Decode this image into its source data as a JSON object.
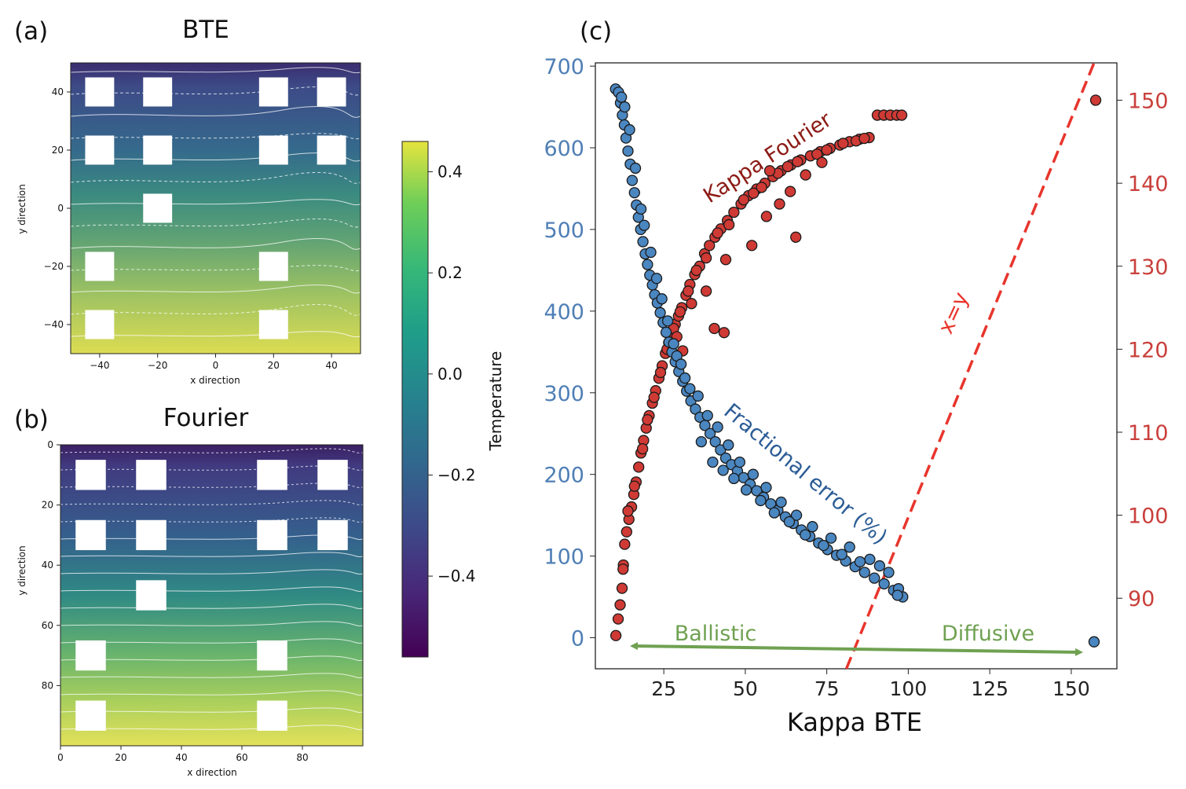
{
  "panels": {
    "a": {
      "label": "(a)",
      "title": "BTE"
    },
    "b": {
      "label": "(b)",
      "title": "Fourier"
    },
    "c": {
      "label": "(c)"
    }
  },
  "colors": {
    "blue_points": "#4a86c0",
    "red_points": "#cf3a35",
    "xy_line": "#e8352c",
    "arrow": "#6fa151",
    "kappa_label": "#8b1a14",
    "frac_label": "#2c5d96",
    "left_ticks": "#4f7fb5",
    "right_ticks": "#c9403c",
    "viridis_low": "#45125f",
    "viridis_high": "#e5e43e"
  },
  "chart_data": [
    {
      "id": "a",
      "type": "heatmap",
      "title": "BTE",
      "xlabel": "x direction",
      "ylabel": "y direction",
      "xlim": [
        -50,
        50
      ],
      "ylim": [
        -50,
        50
      ],
      "xticks": [
        -40,
        -20,
        0,
        20,
        40
      ],
      "yticks": [
        40,
        20,
        0,
        -20,
        -40
      ],
      "pores_centers": [
        [
          -40,
          40
        ],
        [
          -20,
          40
        ],
        [
          20,
          40
        ],
        [
          40,
          40
        ],
        [
          -40,
          20
        ],
        [
          -20,
          20
        ],
        [
          20,
          20
        ],
        [
          40,
          20
        ],
        [
          -20,
          0
        ],
        [
          -40,
          -20
        ],
        [
          20,
          -20
        ],
        [
          -40,
          -40
        ],
        [
          20,
          -40
        ]
      ],
      "pore_size": 10
    },
    {
      "id": "b",
      "type": "heatmap",
      "title": "Fourier",
      "xlabel": "x direction",
      "ylabel": "y direction",
      "xlim": [
        0,
        100
      ],
      "ylim": [
        100,
        0
      ],
      "xticks": [
        0,
        20,
        40,
        60,
        80
      ],
      "yticks": [
        0,
        20,
        40,
        60,
        80
      ],
      "pores_centers": [
        [
          10,
          10
        ],
        [
          30,
          10
        ],
        [
          70,
          10
        ],
        [
          90,
          10
        ],
        [
          10,
          30
        ],
        [
          30,
          30
        ],
        [
          70,
          30
        ],
        [
          90,
          30
        ],
        [
          30,
          50
        ],
        [
          10,
          70
        ],
        [
          70,
          70
        ],
        [
          10,
          90
        ],
        [
          70,
          90
        ]
      ],
      "pore_size": 10
    },
    {
      "id": "colorbar",
      "type": "colorbar",
      "label": "Temperature",
      "range": [
        -0.56,
        0.46
      ],
      "ticks": [
        0.4,
        0.2,
        0.0,
        -0.2,
        -0.4
      ],
      "tick_labels": [
        "0.4",
        "0.2",
        "0.0",
        "−0.2",
        "−0.4"
      ]
    },
    {
      "id": "c",
      "type": "scatter",
      "xlabel": "Kappa BTE",
      "xlim": [
        4,
        164
      ],
      "xticks": [
        25,
        50,
        75,
        100,
        125,
        150
      ],
      "ylim_left": [
        -38,
        704
      ],
      "yticks_left": [
        0,
        100,
        200,
        300,
        400,
        500,
        600,
        700
      ],
      "ylim_right": [
        81.5,
        154.5
      ],
      "yticks_right": [
        90,
        100,
        110,
        120,
        130,
        140,
        150
      ],
      "series": [
        {
          "name": "Fractional error (%)",
          "axis": "left",
          "points": [
            [
              10.2,
              672
            ],
            [
              11.1,
              668
            ],
            [
              11.7,
              655
            ],
            [
              12.3,
              640
            ],
            [
              12.9,
              628
            ],
            [
              13.4,
              612
            ],
            [
              14.0,
              596
            ],
            [
              14.7,
              580
            ],
            [
              15.3,
              560
            ],
            [
              16.0,
              545
            ],
            [
              16.6,
              530
            ],
            [
              17.2,
              515
            ],
            [
              17.9,
              500
            ],
            [
              18.6,
              485
            ],
            [
              19.3,
              470
            ],
            [
              20.0,
              457
            ],
            [
              20.7,
              444
            ],
            [
              21.5,
              432
            ],
            [
              22.2,
              420
            ],
            [
              23.0,
              410
            ],
            [
              23.9,
              398
            ],
            [
              24.8,
              386
            ],
            [
              25.7,
              374
            ],
            [
              26.6,
              362
            ],
            [
              27.5,
              350
            ],
            [
              28.5,
              338
            ],
            [
              29.6,
              326
            ],
            [
              30.8,
              314
            ],
            [
              32.0,
              302
            ],
            [
              33.3,
              290
            ],
            [
              34.7,
              280
            ],
            [
              36.1,
              270
            ],
            [
              37.6,
              260
            ],
            [
              39.2,
              250
            ],
            [
              40.8,
              240
            ],
            [
              42.4,
              230
            ],
            [
              44.0,
              220
            ],
            [
              45.8,
              212
            ],
            [
              47.6,
              204
            ],
            [
              49.5,
              196
            ],
            [
              51.5,
              188
            ],
            [
              53.5,
              180
            ],
            [
              55.6,
              172
            ],
            [
              57.8,
              164
            ],
            [
              60.0,
              156
            ],
            [
              62.3,
              148
            ],
            [
              64.7,
              140
            ],
            [
              67.2,
              132
            ],
            [
              69.8,
              124
            ],
            [
              72.5,
              116
            ],
            [
              75.2,
              108
            ],
            [
              78.0,
              101
            ],
            [
              80.8,
              94
            ],
            [
              83.7,
              87
            ],
            [
              86.6,
              80
            ],
            [
              89.6,
              73
            ],
            [
              92.6,
              66
            ],
            [
              95.5,
              58
            ],
            [
              98.3,
              50
            ],
            [
              12.0,
              662
            ],
            [
              13.0,
              650
            ],
            [
              14.5,
              622
            ],
            [
              16.3,
              575
            ],
            [
              18.0,
              525
            ],
            [
              19.0,
              505
            ],
            [
              21.0,
              472
            ],
            [
              22.8,
              440
            ],
            [
              24.4,
              415
            ],
            [
              26.2,
              388
            ],
            [
              28.0,
              360
            ],
            [
              29.0,
              345
            ],
            [
              30.3,
              335
            ],
            [
              31.5,
              318
            ],
            [
              33.0,
              305
            ],
            [
              35.5,
              296
            ],
            [
              38.4,
              272
            ],
            [
              41.5,
              258
            ],
            [
              44.8,
              236
            ],
            [
              48.3,
              215
            ],
            [
              52.4,
              200
            ],
            [
              56.4,
              184
            ],
            [
              61.0,
              166
            ],
            [
              65.7,
              150
            ],
            [
              70.6,
              136
            ],
            [
              76.3,
              122
            ],
            [
              82.0,
              111
            ],
            [
              88.2,
              96
            ],
            [
              94.0,
              80
            ],
            [
              97.0,
              60
            ],
            [
              36.5,
              240
            ],
            [
              40.0,
              215
            ],
            [
              43.2,
              205
            ],
            [
              46.5,
              195
            ],
            [
              50.3,
              181
            ],
            [
              54.7,
              168
            ],
            [
              58.9,
              153
            ],
            [
              63.5,
              142
            ],
            [
              68.4,
              126
            ],
            [
              74.0,
              113
            ],
            [
              79.6,
              102
            ],
            [
              85.2,
              93
            ],
            [
              91.2,
              88
            ],
            [
              96.7,
              52
            ],
            [
              157.0,
              -5
            ]
          ]
        },
        {
          "name": "Kappa Fourier",
          "axis": "right",
          "points": [
            [
              10.3,
              85.5
            ],
            [
              11.0,
              87.5
            ],
            [
              11.6,
              89.2
            ],
            [
              12.2,
              91.2
            ],
            [
              12.6,
              94.0
            ],
            [
              13.0,
              96.5
            ],
            [
              13.6,
              98.0
            ],
            [
              14.3,
              99.5
            ],
            [
              15.1,
              101.0
            ],
            [
              15.8,
              102.5
            ],
            [
              16.5,
              104.0
            ],
            [
              17.3,
              105.8
            ],
            [
              18.0,
              107.5
            ],
            [
              18.8,
              109.0
            ],
            [
              19.6,
              110.5
            ],
            [
              20.5,
              112.0
            ],
            [
              21.5,
              113.5
            ],
            [
              22.5,
              115.0
            ],
            [
              23.5,
              116.5
            ],
            [
              24.5,
              118.0
            ],
            [
              25.5,
              119.5
            ],
            [
              26.5,
              120.8
            ],
            [
              27.5,
              122.0
            ],
            [
              28.5,
              123.0
            ],
            [
              29.5,
              124.0
            ],
            [
              30.5,
              125.0
            ],
            [
              31.8,
              126.5
            ],
            [
              33.0,
              127.8
            ],
            [
              34.5,
              129.0
            ],
            [
              36.0,
              130.0
            ],
            [
              37.5,
              131.5
            ],
            [
              39.0,
              132.5
            ],
            [
              40.7,
              133.5
            ],
            [
              42.5,
              134.5
            ],
            [
              44.5,
              135.5
            ],
            [
              46.5,
              136.5
            ],
            [
              48.7,
              137.5
            ],
            [
              51.0,
              138.5
            ],
            [
              53.5,
              139.3
            ],
            [
              56.0,
              140.0
            ],
            [
              58.5,
              140.8
            ],
            [
              61.0,
              141.5
            ],
            [
              64.0,
              142.2
            ],
            [
              67.0,
              142.8
            ],
            [
              70.0,
              143.3
            ],
            [
              73.0,
              143.8
            ],
            [
              76.0,
              144.2
            ],
            [
              79.0,
              144.6
            ],
            [
              82.0,
              145.0
            ],
            [
              85.0,
              145.3
            ],
            [
              88.0,
              145.5
            ],
            [
              90.5,
              148.2
            ],
            [
              92.5,
              148.2
            ],
            [
              94.5,
              148.2
            ],
            [
              96.5,
              148.2
            ],
            [
              98.0,
              148.2
            ],
            [
              157.5,
              150.0
            ],
            [
              12.5,
              93.5
            ],
            [
              14.0,
              100.5
            ],
            [
              16.0,
              103.5
            ],
            [
              18.5,
              108.0
            ],
            [
              20.0,
              111.5
            ],
            [
              22.0,
              114.2
            ],
            [
              24.0,
              117.2
            ],
            [
              26.0,
              120.0
            ],
            [
              28.0,
              122.5
            ],
            [
              30.0,
              124.5
            ],
            [
              32.5,
              127.0
            ],
            [
              35.0,
              129.5
            ],
            [
              38.0,
              131.0
            ],
            [
              41.5,
              134.0
            ],
            [
              45.0,
              135.0
            ],
            [
              49.5,
              138.0
            ],
            [
              52.5,
              138.8
            ],
            [
              55.0,
              139.5
            ],
            [
              60.0,
              141.2
            ],
            [
              63.0,
              142.0
            ],
            [
              66.0,
              142.6
            ],
            [
              72.0,
              143.5
            ],
            [
              75.0,
              144.0
            ],
            [
              80.0,
              144.8
            ],
            [
              84.0,
              145.1
            ],
            [
              86.5,
              145.4
            ],
            [
              44.0,
              130.8
            ],
            [
              52.0,
              132.5
            ],
            [
              56.5,
              136.0
            ],
            [
              60.5,
              137.5
            ],
            [
              63.8,
              139.0
            ],
            [
              65.5,
              133.5
            ],
            [
              40.5,
              122.5
            ],
            [
              43.5,
              122.0
            ],
            [
              38.0,
              127.0
            ],
            [
              30.8,
              119.8
            ],
            [
              33.5,
              125.5
            ],
            [
              29.0,
              121.5
            ],
            [
              57.5,
              141.5
            ],
            [
              68.5,
              141.0
            ],
            [
              73.5,
              142.5
            ]
          ]
        }
      ],
      "reference_line": {
        "label": "x=y",
        "points": [
          [
            81,
            81.5
          ],
          [
            157,
            154.5
          ]
        ]
      },
      "annotations": {
        "kappa_fourier": "Kappa Fourier",
        "fractional_error": "Fractional error (%)",
        "xy": "x=y",
        "ballistic": "Ballistic",
        "diffusive": "Diffusive"
      }
    }
  ]
}
